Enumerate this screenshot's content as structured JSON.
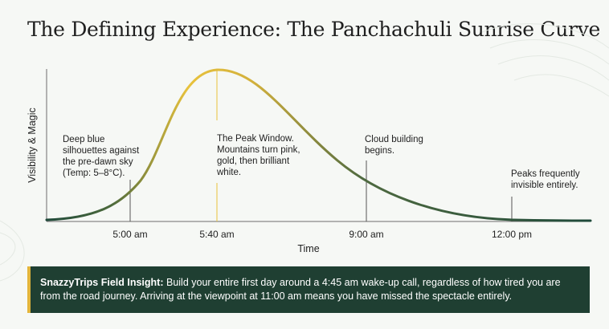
{
  "title": "The Defining Experience: The Panchachuli Sunrise Curve",
  "chart_data": {
    "type": "line",
    "title": "The Defining Experience: The Panchachuli Sunrise Curve",
    "xlabel": "Time",
    "ylabel": "Visibility & Magic",
    "x_ticks": [
      "5:00 am",
      "5:40 am",
      "9:00 am",
      "12:00 pm"
    ],
    "annotations": [
      {
        "at": "5:00 am",
        "lines": [
          "Deep blue",
          "silhouettes against",
          "the pre-dawn sky",
          "(Temp: 5–8°C)."
        ]
      },
      {
        "at": "5:40 am",
        "lines": [
          "The Peak Window.",
          "Mountains turn pink,",
          "gold, then brilliant",
          "white."
        ]
      },
      {
        "at": "9:00 am",
        "lines": [
          "Cloud building",
          "begins."
        ]
      },
      {
        "at": "12:00 pm",
        "lines": [
          "Peaks frequently",
          "invisible entirely."
        ]
      }
    ],
    "colors": {
      "gold": "#e8c23c",
      "green": "#1f4a3a"
    }
  },
  "insight": {
    "label": "SnazzyTrips Field Insight:",
    "text": "Build your entire first day around a 4:45 am wake-up call, regardless of how tired you are from the road journey. Arriving at the viewpoint at 11:00 am means you have missed the spectacle entirely."
  }
}
